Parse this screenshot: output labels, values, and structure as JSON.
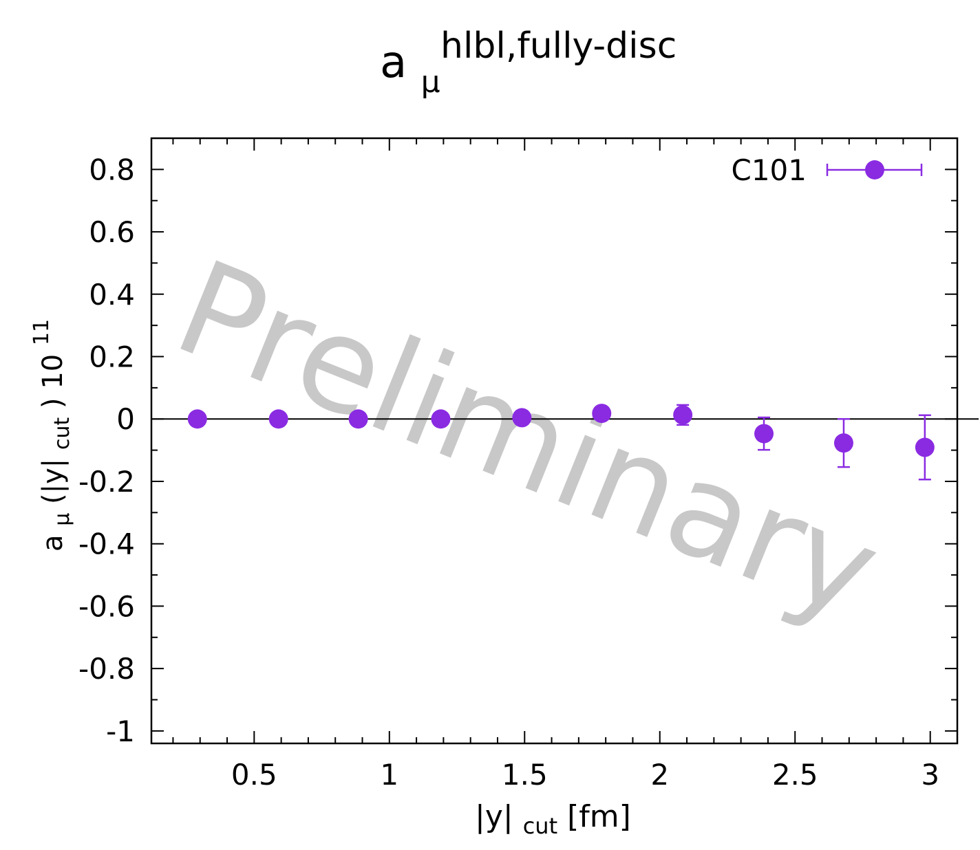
{
  "colors": {
    "series": "#8a2be2",
    "axis": "#000000",
    "watermark": "#c8c8c8"
  },
  "watermark": "Preliminary",
  "chart_data": {
    "type": "scatter",
    "title": {
      "base": "a",
      "sub": "μ",
      "sup": "hlbl,fully-disc"
    },
    "xlabel": {
      "pre": "|y|",
      "sub": "cut",
      "post": " [fm]"
    },
    "ylabel": {
      "a": "a",
      "mu": "μ",
      "mid": "(|y|",
      "cut": "cut",
      "close": ") 10",
      "exp": "11"
    },
    "xlim": [
      0.12,
      3.1
    ],
    "ylim": [
      -1.04,
      0.9
    ],
    "x_ticks": [
      0.5,
      1,
      1.5,
      2,
      2.5,
      3
    ],
    "x_tick_labels": [
      "0.5",
      "1",
      "1.5",
      "2",
      "2.5",
      "3"
    ],
    "y_ticks": [
      0.8,
      0.6,
      0.4,
      0.2,
      0,
      -0.2,
      -0.4,
      -0.6,
      -0.8,
      -1
    ],
    "y_tick_labels": [
      "0.8",
      "0.6",
      "0.4",
      "0.2",
      "0",
      "-0.2",
      "-0.4",
      "-0.6",
      "-0.8",
      "-1"
    ],
    "grid": false,
    "zero_line": true,
    "legend_position": "top-right",
    "series": [
      {
        "name": "C101",
        "x": [
          0.29,
          0.59,
          0.885,
          1.19,
          1.49,
          1.785,
          2.085,
          2.385,
          2.68,
          2.98
        ],
        "y": [
          0.0,
          0.0,
          0.0,
          0.0,
          0.004,
          0.018,
          0.013,
          -0.047,
          -0.077,
          -0.091
        ],
        "err": [
          0.0,
          0.0,
          0.0,
          0.0,
          0.004,
          0.008,
          0.032,
          0.052,
          0.077,
          0.103
        ]
      }
    ]
  }
}
